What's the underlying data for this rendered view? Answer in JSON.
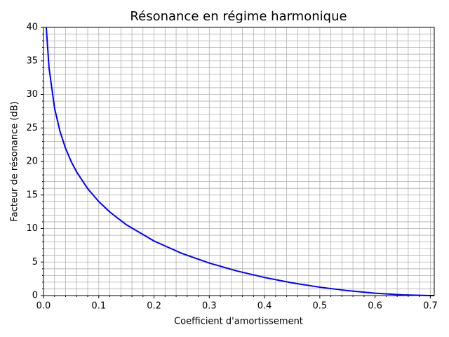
{
  "chart_data": {
    "type": "line",
    "title": "Résonance en régime harmonique",
    "x_label": "Coefficient d'amortissement",
    "y_label": "Facteur de résonance (dB)",
    "x": [
      0.005,
      0.01,
      0.02,
      0.03,
      0.04,
      0.05,
      0.06,
      0.08,
      0.1,
      0.12,
      0.15,
      0.2,
      0.25,
      0.3,
      0.35,
      0.4,
      0.45,
      0.5,
      0.55,
      0.6,
      0.65,
      0.7,
      0.7071
    ],
    "series": [
      {
        "name": "Facteur de résonance",
        "color": "#0000ff",
        "values": [
          40.0,
          33.98,
          27.96,
          24.44,
          21.95,
          20.01,
          18.43,
          15.95,
          14.02,
          12.46,
          10.56,
          8.14,
          6.3,
          4.85,
          3.67,
          2.7,
          1.9,
          1.25,
          0.74,
          0.35,
          0.11,
          0.0,
          0.0
        ]
      }
    ],
    "xlim": [
      0,
      0.7071
    ],
    "ylim": [
      0,
      40
    ],
    "xticks": [
      {
        "value": 0,
        "label": "0.0"
      },
      0.1,
      0.2,
      0.3,
      0.4,
      0.5,
      0.6,
      0.7
    ],
    "yticks": [
      0,
      5,
      10,
      15,
      20,
      25,
      30,
      35,
      40
    ],
    "xminorticks": [
      0.02,
      0.04,
      0.06,
      0.08,
      0.12,
      0.14,
      0.16,
      0.18,
      0.22,
      0.24,
      0.26,
      0.28,
      0.32,
      0.34,
      0.36,
      0.38,
      0.42,
      0.44,
      0.46,
      0.48,
      0.52,
      0.54,
      0.56,
      0.58,
      0.62,
      0.64,
      0.66,
      0.68
    ],
    "yminorticks": [
      1,
      2,
      3,
      4,
      6,
      7,
      8,
      9,
      11,
      12,
      13,
      14,
      16,
      17,
      18,
      19,
      21,
      22,
      23,
      24,
      26,
      27,
      28,
      29,
      31,
      32,
      33,
      34,
      36,
      37,
      38,
      39
    ],
    "grid": true
  }
}
